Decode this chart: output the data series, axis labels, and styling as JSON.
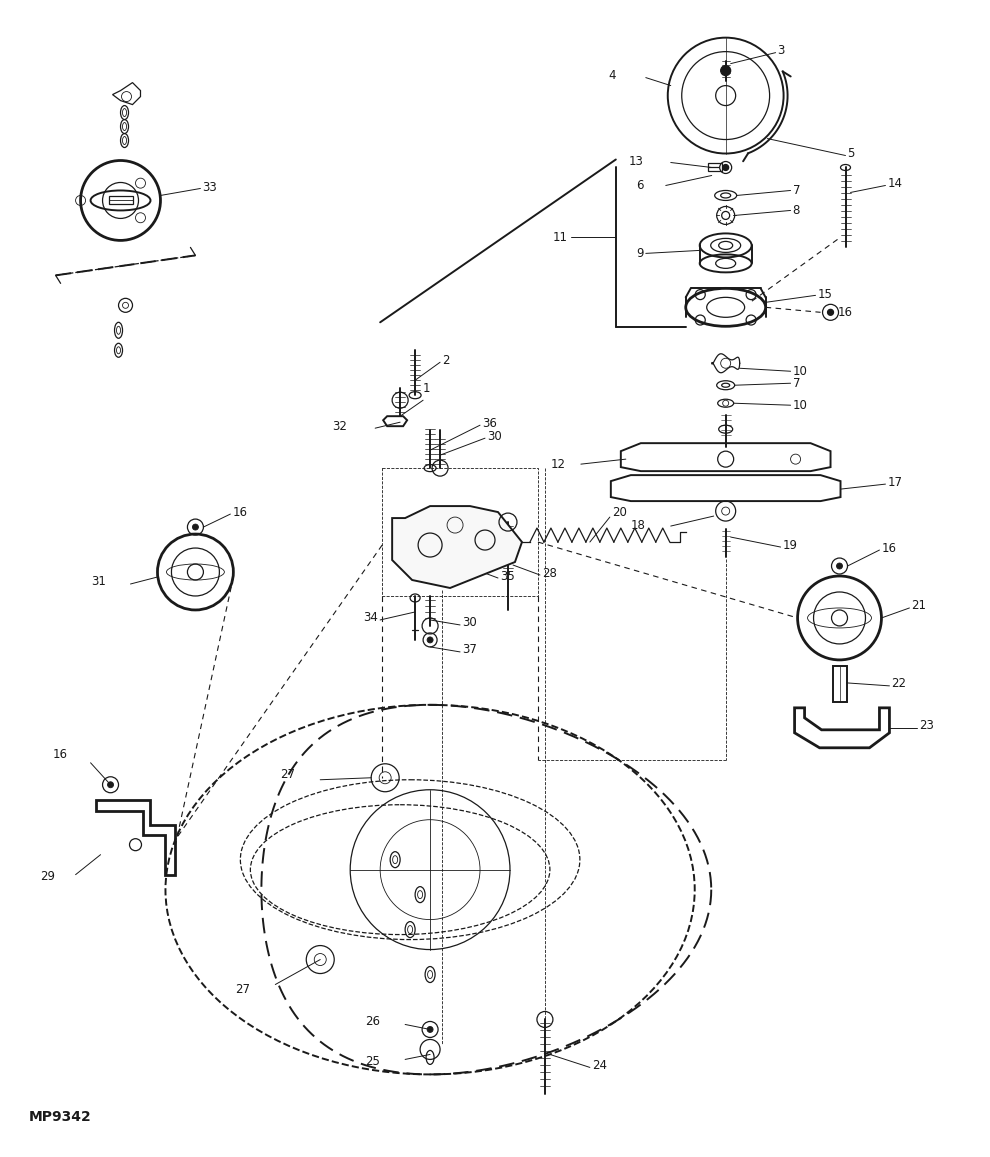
{
  "bg_color": "#ffffff",
  "line_color": "#1a1a1a",
  "fig_width": 9.9,
  "fig_height": 11.57,
  "mp_label": "MP9342",
  "dpi": 100
}
